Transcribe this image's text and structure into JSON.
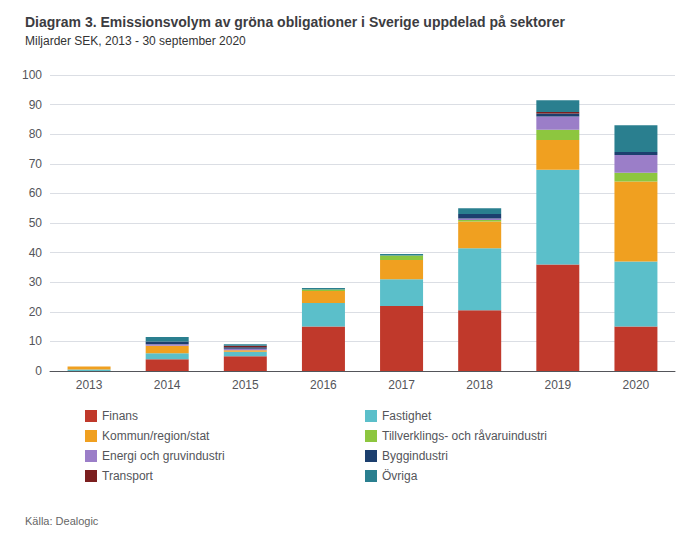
{
  "chart_data": {
    "type": "bar",
    "title": "Diagram 3. Emissionsvolym av gröna obligationer i Sverige uppdelad på sektorer",
    "subtitle": "Miljarder SEK, 2013 - 30 september 2020",
    "annotations": [
      "Källa: Dealogic"
    ],
    "categories": [
      "2013",
      "2014",
      "2015",
      "2016",
      "2017",
      "2018",
      "2019",
      "2020"
    ],
    "series": [
      {
        "name": "Finans",
        "color": "#C0392B",
        "values": [
          0.0,
          4.0,
          5.0,
          15.0,
          22.0,
          20.5,
          36.0,
          15.0
        ]
      },
      {
        "name": "Fastighet",
        "color": "#5BBFCA",
        "values": [
          0.5,
          2.0,
          1.5,
          8.0,
          9.0,
          21.0,
          32.0,
          22.0
        ]
      },
      {
        "name": "Kommun/region/stat",
        "color": "#F0A020",
        "values": [
          1.0,
          2.5,
          0.5,
          4.0,
          6.5,
          9.0,
          10.0,
          27.0
        ]
      },
      {
        "name": "Tillverklings- och råvaruindustri",
        "color": "#8DC63F",
        "values": [
          0.0,
          0.0,
          0.0,
          0.5,
          1.5,
          0.5,
          3.5,
          3.0
        ]
      },
      {
        "name": "Energi och gruvindustri",
        "color": "#9B7EC8",
        "values": [
          0.0,
          0.5,
          0.5,
          0.0,
          0.0,
          0.5,
          4.5,
          6.0
        ]
      },
      {
        "name": "Byggindustri",
        "color": "#1C3F6E",
        "values": [
          0.0,
          1.0,
          0.5,
          0.0,
          0.0,
          1.5,
          1.0,
          1.0
        ]
      },
      {
        "name": "Transport",
        "color": "#7B1F1F",
        "values": [
          0.0,
          0.0,
          0.5,
          0.0,
          0.0,
          0.0,
          0.5,
          0.0
        ]
      },
      {
        "name": "Övriga",
        "color": "#2A7F8F",
        "values": [
          0.0,
          1.5,
          0.5,
          0.5,
          0.5,
          2.0,
          4.0,
          9.0
        ]
      }
    ],
    "stacked": true,
    "ylim": [
      0,
      100
    ],
    "yticks": [
      0,
      10,
      20,
      30,
      40,
      50,
      60,
      70,
      80,
      90,
      100
    ],
    "grid": true,
    "legend": "bottom"
  }
}
